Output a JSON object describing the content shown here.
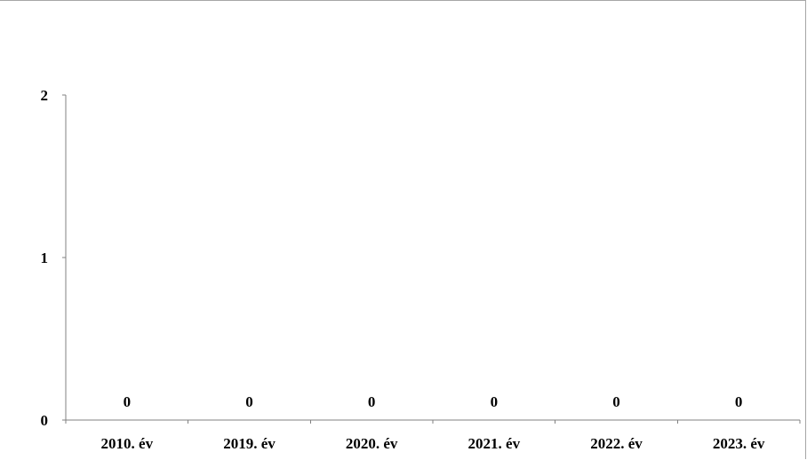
{
  "chart_data": {
    "type": "bar",
    "categories": [
      "2010. év",
      "2019. év",
      "2020. év",
      "2021. év",
      "2022. év",
      "2023. év"
    ],
    "values": [
      0,
      0,
      0,
      0,
      0,
      0
    ],
    "data_labels": [
      "0",
      "0",
      "0",
      "0",
      "0",
      "0"
    ],
    "title": "",
    "xlabel": "",
    "ylabel": "",
    "ylim": [
      0,
      2
    ],
    "yticks": [
      "0",
      "1",
      "2"
    ],
    "grid": false,
    "legend": "none"
  }
}
